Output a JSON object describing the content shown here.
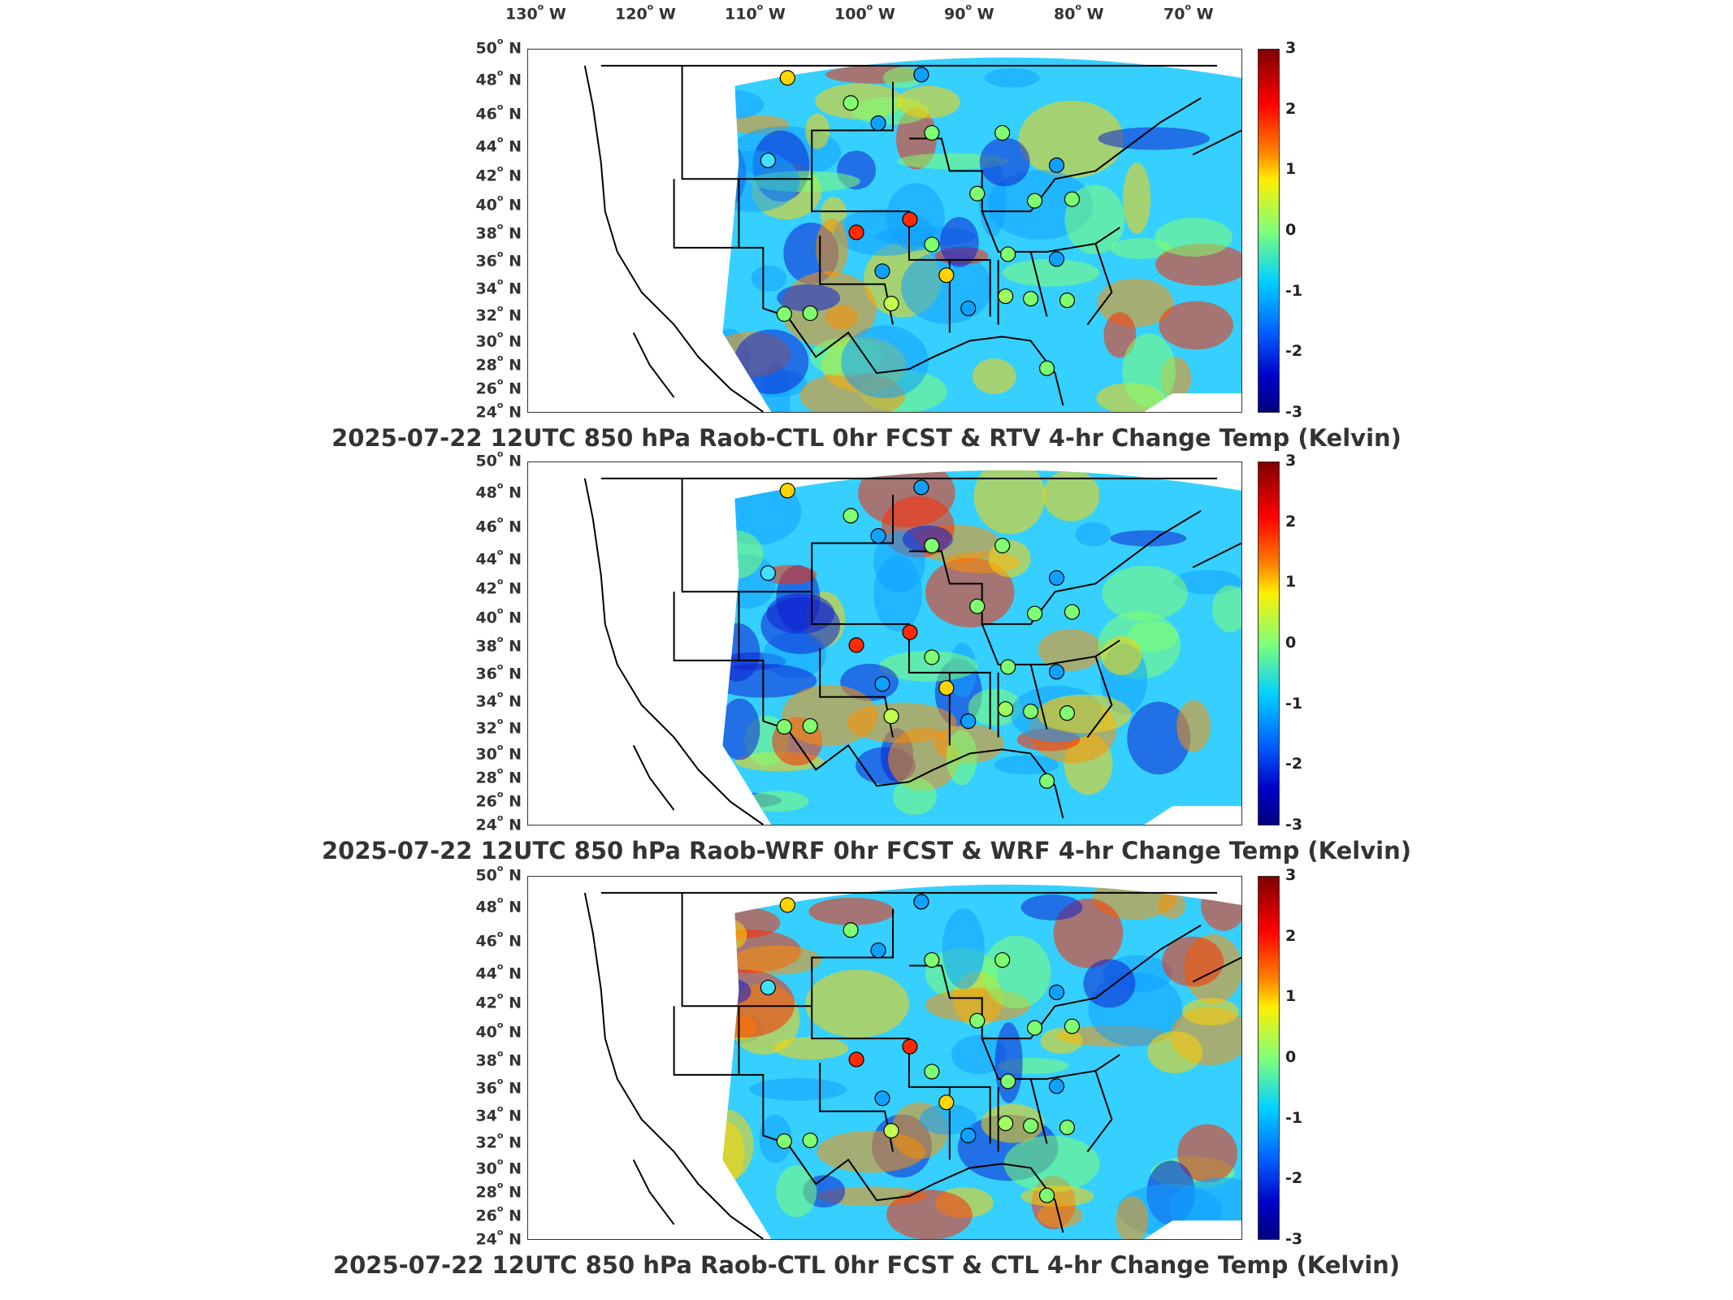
{
  "lon_labels": [
    "130",
    "120",
    "110",
    "100",
    "90",
    "80",
    "70"
  ],
  "lon_suffix": "W",
  "lat_labels": [
    "50",
    "48",
    "46",
    "44",
    "42",
    "40",
    "38",
    "36",
    "34",
    "32",
    "30",
    "28",
    "26",
    "24"
  ],
  "lat_suffix": "N",
  "colorbar_ticks": [
    "3",
    "2",
    "1",
    "0",
    "-1",
    "-2",
    "-3"
  ],
  "panels": [
    {
      "title": "2025-07-22 12UTC 850 hPa Raob-CTL 0hr FCST & RTV 4-hr Change Temp (Kelvin)"
    },
    {
      "title": "2025-07-22 12UTC 850 hPa Raob-WRF 0hr FCST & WRF 4-hr Change Temp (Kelvin)"
    },
    {
      "title": "2025-07-22 12UTC 850 hPa Raob-CTL 0hr FCST & CTL 4-hr Change Temp (Kelvin)"
    }
  ],
  "colors": {
    "field_base": "#35d0ff",
    "hot": "#ff2a00",
    "warm": "#ffd400",
    "cool": "#10a0ff",
    "cold": "#1020d0",
    "outline": "#000000"
  }
}
